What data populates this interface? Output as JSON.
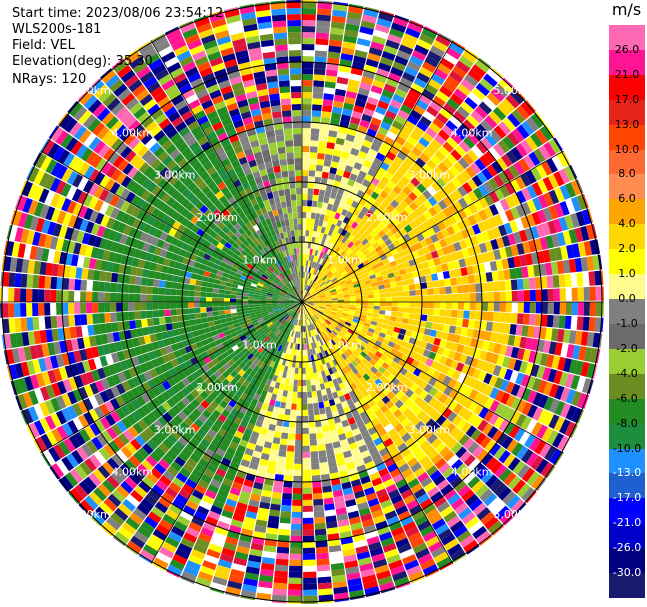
{
  "info": {
    "start_time": "Start time: 2023/08/06 23:54:12",
    "instrument": "WLS200s-181",
    "field": "Field: VEL",
    "elevation": "Elevation(deg): 35.30",
    "nrays": "NRays: 120"
  },
  "colorbar": {
    "unit": "m/s",
    "ticks": [
      "26.0",
      "21.0",
      "17.0",
      "13.0",
      "10.0",
      "8.0",
      "6.0",
      "4.0",
      "2.0",
      "1.0",
      "0.0",
      "-1.0",
      "-2.0",
      "-4.0",
      "-6.0",
      "-8.0",
      "-10.0",
      "-13.0",
      "-17.0",
      "-21.0",
      "-26.0",
      "-30.0"
    ],
    "colors": [
      "#ff69b4",
      "#ff1493",
      "#ff0000",
      "#e8251a",
      "#ff4500",
      "#ff6a33",
      "#ff8c50",
      "#ffa500",
      "#ffd700",
      "#ffff00",
      "#fffb8c",
      "#808080",
      "#6b6b6b",
      "#9acd32",
      "#6b8e23",
      "#228b22",
      "#1e8e3e",
      "#1e90ff",
      "#1f60d0",
      "#0000ff",
      "#0000cd",
      "#000080",
      "#191970"
    ],
    "light_text_from": 17
  },
  "chart_data": {
    "type": "polar_ppi",
    "title": "",
    "field": "VEL",
    "unit": "m/s",
    "range_rings_km": [
      1.0,
      2.0,
      3.0,
      4.0,
      5.0
    ],
    "ring_labels": [
      "1.0km",
      "2.00km",
      "3.00km",
      "4.00km",
      "5.00km"
    ],
    "max_range_km": 5.0,
    "nrays": 120,
    "color_scale_values": [
      26.0,
      21.0,
      17.0,
      13.0,
      10.0,
      8.0,
      6.0,
      4.0,
      2.0,
      1.0,
      0.0,
      -1.0,
      -2.0,
      -4.0,
      -6.0,
      -8.0,
      -10.0,
      -13.0,
      -17.0,
      -21.0,
      -26.0,
      -30.0
    ],
    "sectors": [
      {
        "azimuth_range_deg": [
          0,
          30
        ],
        "range_km": [
          0,
          3.0
        ],
        "typical_value": 1.5,
        "description_value": "yellow"
      },
      {
        "azimuth_range_deg": [
          30,
          150
        ],
        "range_km": [
          0,
          3.5
        ],
        "typical_value": 5.0,
        "description_value": "orange"
      },
      {
        "azimuth_range_deg": [
          150,
          200
        ],
        "range_km": [
          0,
          3.0
        ],
        "typical_value": 1.5,
        "description_value": "yellow"
      },
      {
        "azimuth_range_deg": [
          200,
          340
        ],
        "range_km": [
          0,
          3.5
        ],
        "typical_value": -5.0,
        "description_value": "green"
      },
      {
        "azimuth_range_deg": [
          340,
          360
        ],
        "range_km": [
          0,
          3.0
        ],
        "typical_value": -0.5,
        "description_value": "gray"
      }
    ]
  }
}
